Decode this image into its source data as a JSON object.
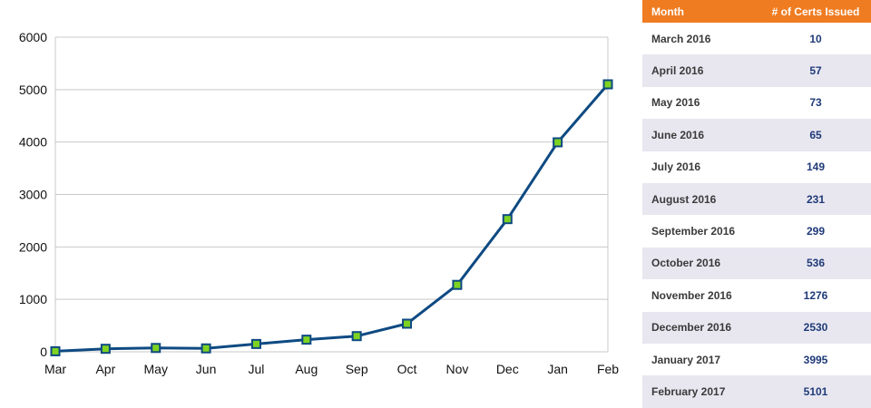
{
  "chart_data": {
    "type": "line",
    "categories": [
      "Mar",
      "Apr",
      "May",
      "Jun",
      "Jul",
      "Aug",
      "Sep",
      "Oct",
      "Nov",
      "Dec",
      "Jan",
      "Feb"
    ],
    "series": [
      {
        "values": [
          10,
          57,
          73,
          65,
          149,
          231,
          299,
          536,
          1276,
          2530,
          3995,
          5101
        ]
      }
    ],
    "ylim": [
      0,
      6000
    ],
    "yticks": [
      0,
      1000,
      2000,
      3000,
      4000,
      5000,
      6000
    ],
    "grid": true,
    "colors": {
      "line": "#0e4a82",
      "marker_fill": "#7ed321",
      "marker_edge": "#0e4a82",
      "grid": "#c8c8c8"
    }
  },
  "table": {
    "headers": {
      "month": "Month",
      "certs": "# of Certs Issued"
    },
    "rows": [
      {
        "month": "March 2016",
        "certs": "10"
      },
      {
        "month": "April 2016",
        "certs": "57"
      },
      {
        "month": "May 2016",
        "certs": "73"
      },
      {
        "month": "June 2016",
        "certs": "65"
      },
      {
        "month": "July 2016",
        "certs": "149"
      },
      {
        "month": "August 2016",
        "certs": "231"
      },
      {
        "month": "September 2016",
        "certs": "299"
      },
      {
        "month": "October 2016",
        "certs": "536"
      },
      {
        "month": "November 2016",
        "certs": "1276"
      },
      {
        "month": "December 2016",
        "certs": "2530"
      },
      {
        "month": "January 2017",
        "certs": "3995"
      },
      {
        "month": "February 2017",
        "certs": "5101"
      }
    ],
    "colors": {
      "header_bg": "#f07c21",
      "stripe_bg": "#e8e7f0"
    }
  }
}
